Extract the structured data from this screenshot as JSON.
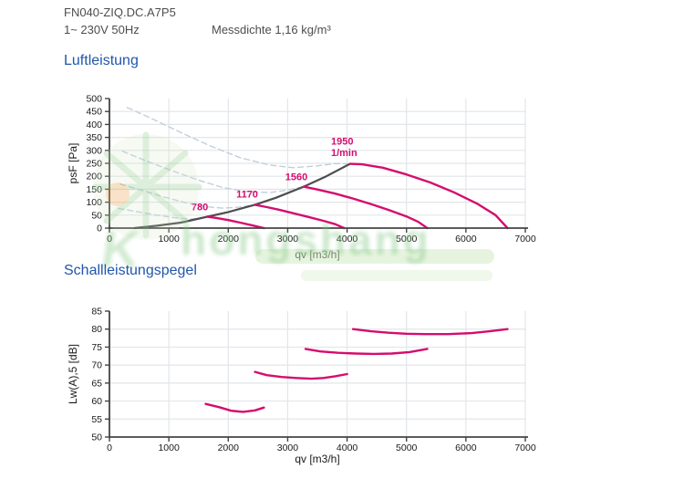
{
  "header": {
    "model": "FN040-ZIQ.DC.A7P5",
    "power": "1~ 230V 50Hz",
    "density": "Messdichte 1,16 kg/m³"
  },
  "sections": {
    "air": "Luftleistung",
    "sound": "Schallleistungspegel"
  },
  "watermark": {
    "text": "hongshang",
    "glyph": "K"
  },
  "colors": {
    "accent_blue": "#2156ac",
    "text_gray": "#4d4d4d",
    "curve_pink": "#d40d6e",
    "curve_dark": "#4d4d4d",
    "curve_dashed": "#c2cedd",
    "grid": "#e2e6ea",
    "axis": "#444444",
    "tick_text": "#1a1a1a",
    "watermark_green": "#9fd49b",
    "watermark_orange": "#f0a24f"
  },
  "chart_data": [
    {
      "type": "line",
      "title": "Luftleistung",
      "xlabel": "qv [m3/h]",
      "ylabel": "psF [Pa]",
      "xlim": [
        0,
        7000
      ],
      "xstep": 1000,
      "ylim": [
        0,
        500
      ],
      "ystep": 50,
      "grid": true,
      "legend": "none",
      "series": [
        {
          "name": "780 1/min unstable",
          "style": "dashed",
          "points": [
            [
              150,
              76
            ],
            [
              450,
              64
            ],
            [
              800,
              50
            ],
            [
              1100,
              40
            ],
            [
              1350,
              35
            ],
            [
              1550,
              38
            ],
            [
              1650,
              44
            ]
          ]
        },
        {
          "name": "1170 1/min unstable",
          "style": "dashed",
          "points": [
            [
              180,
              170
            ],
            [
              500,
              149
            ],
            [
              900,
              121
            ],
            [
              1300,
              97
            ],
            [
              1600,
              83
            ],
            [
              1900,
              77
            ],
            [
              2150,
              80
            ],
            [
              2450,
              90
            ]
          ]
        },
        {
          "name": "1560 1/min unstable",
          "style": "dashed",
          "points": [
            [
              220,
              297
            ],
            [
              600,
              261
            ],
            [
              1000,
              226
            ],
            [
              1500,
              185
            ],
            [
              1900,
              157
            ],
            [
              2300,
              141
            ],
            [
              2700,
              137
            ],
            [
              3000,
              147
            ],
            [
              3270,
              160
            ]
          ]
        },
        {
          "name": "1950 1/min unstable",
          "style": "dashed",
          "points": [
            [
              300,
              465
            ],
            [
              700,
              424
            ],
            [
              1200,
              369
            ],
            [
              1700,
              317
            ],
            [
              2200,
              272
            ],
            [
              2700,
              243
            ],
            [
              3100,
              233
            ],
            [
              3500,
              240
            ],
            [
              3800,
              249
            ],
            [
              4050,
              248
            ]
          ]
        },
        {
          "name": "stall limit line",
          "style": "dark",
          "points": [
            [
              420,
              0
            ],
            [
              800,
              9
            ],
            [
              1200,
              21
            ],
            [
              1650,
              44
            ],
            [
              2000,
              62
            ],
            [
              2450,
              90
            ],
            [
              2800,
              117
            ],
            [
              3270,
              160
            ],
            [
              3650,
              200
            ],
            [
              4050,
              248
            ]
          ]
        },
        {
          "name": "780 1/min",
          "style": "solid",
          "points": [
            [
              1650,
              44
            ],
            [
              1800,
              39
            ],
            [
              2000,
              31
            ],
            [
              2200,
              21
            ],
            [
              2400,
              11
            ],
            [
              2600,
              0
            ]
          ]
        },
        {
          "name": "1170 1/min",
          "style": "solid",
          "points": [
            [
              2450,
              90
            ],
            [
              2650,
              81
            ],
            [
              2850,
              71
            ],
            [
              3100,
              57
            ],
            [
              3350,
              43
            ],
            [
              3600,
              28
            ],
            [
              3800,
              15
            ],
            [
              3950,
              0
            ]
          ]
        },
        {
          "name": "1560 1/min",
          "style": "solid",
          "points": [
            [
              3270,
              160
            ],
            [
              3500,
              149
            ],
            [
              3800,
              133
            ],
            [
              4100,
              114
            ],
            [
              4400,
              93
            ],
            [
              4700,
              70
            ],
            [
              5000,
              45
            ],
            [
              5200,
              24
            ],
            [
              5350,
              0
            ]
          ]
        },
        {
          "name": "1950 1/min",
          "style": "solid",
          "points": [
            [
              4050,
              248
            ],
            [
              4250,
              246
            ],
            [
              4600,
              233
            ],
            [
              5000,
              207
            ],
            [
              5400,
              176
            ],
            [
              5800,
              138
            ],
            [
              6200,
              93
            ],
            [
              6500,
              50
            ],
            [
              6700,
              0
            ]
          ]
        }
      ],
      "annotations": [
        {
          "text": "780",
          "x": 1520,
          "y": 68,
          "anchor": "middle"
        },
        {
          "text": "1170",
          "x": 2318,
          "y": 118,
          "anchor": "middle"
        },
        {
          "text": "1560",
          "x": 3147,
          "y": 185,
          "anchor": "middle"
        },
        {
          "text": "1950",
          "x": 3730,
          "y": 322,
          "anchor": "start"
        },
        {
          "text": "1/min",
          "x": 3730,
          "y": 278,
          "anchor": "start"
        }
      ]
    },
    {
      "type": "line",
      "title": "Schallleistungspegel",
      "xlabel": "qv [m3/h]",
      "ylabel": "Lw(A),5 [dB]",
      "xlim": [
        0,
        7000
      ],
      "xstep": 1000,
      "ylim": [
        50,
        85
      ],
      "ystep": 5,
      "grid": true,
      "legend": "none",
      "series": [
        {
          "name": "780 1/min",
          "style": "solid",
          "points": [
            [
              1620,
              59.2
            ],
            [
              1850,
              58.3
            ],
            [
              2050,
              57.3
            ],
            [
              2250,
              57.0
            ],
            [
              2450,
              57.4
            ],
            [
              2600,
              58.2
            ]
          ]
        },
        {
          "name": "1170 1/min",
          "style": "solid",
          "points": [
            [
              2450,
              68.1
            ],
            [
              2650,
              67.2
            ],
            [
              2900,
              66.7
            ],
            [
              3150,
              66.4
            ],
            [
              3400,
              66.2
            ],
            [
              3600,
              66.4
            ],
            [
              3800,
              66.9
            ],
            [
              4000,
              67.5
            ]
          ]
        },
        {
          "name": "1560 1/min",
          "style": "solid",
          "points": [
            [
              3300,
              74.5
            ],
            [
              3550,
              73.8
            ],
            [
              3850,
              73.4
            ],
            [
              4150,
              73.2
            ],
            [
              4450,
              73.1
            ],
            [
              4750,
              73.2
            ],
            [
              5050,
              73.6
            ],
            [
              5350,
              74.5
            ]
          ]
        },
        {
          "name": "1950 1/min",
          "style": "solid",
          "points": [
            [
              4100,
              80.0
            ],
            [
              4400,
              79.4
            ],
            [
              4700,
              79.0
            ],
            [
              5000,
              78.7
            ],
            [
              5300,
              78.6
            ],
            [
              5700,
              78.6
            ],
            [
              6100,
              78.9
            ],
            [
              6400,
              79.4
            ],
            [
              6700,
              80.0
            ]
          ]
        }
      ],
      "annotations": []
    }
  ]
}
